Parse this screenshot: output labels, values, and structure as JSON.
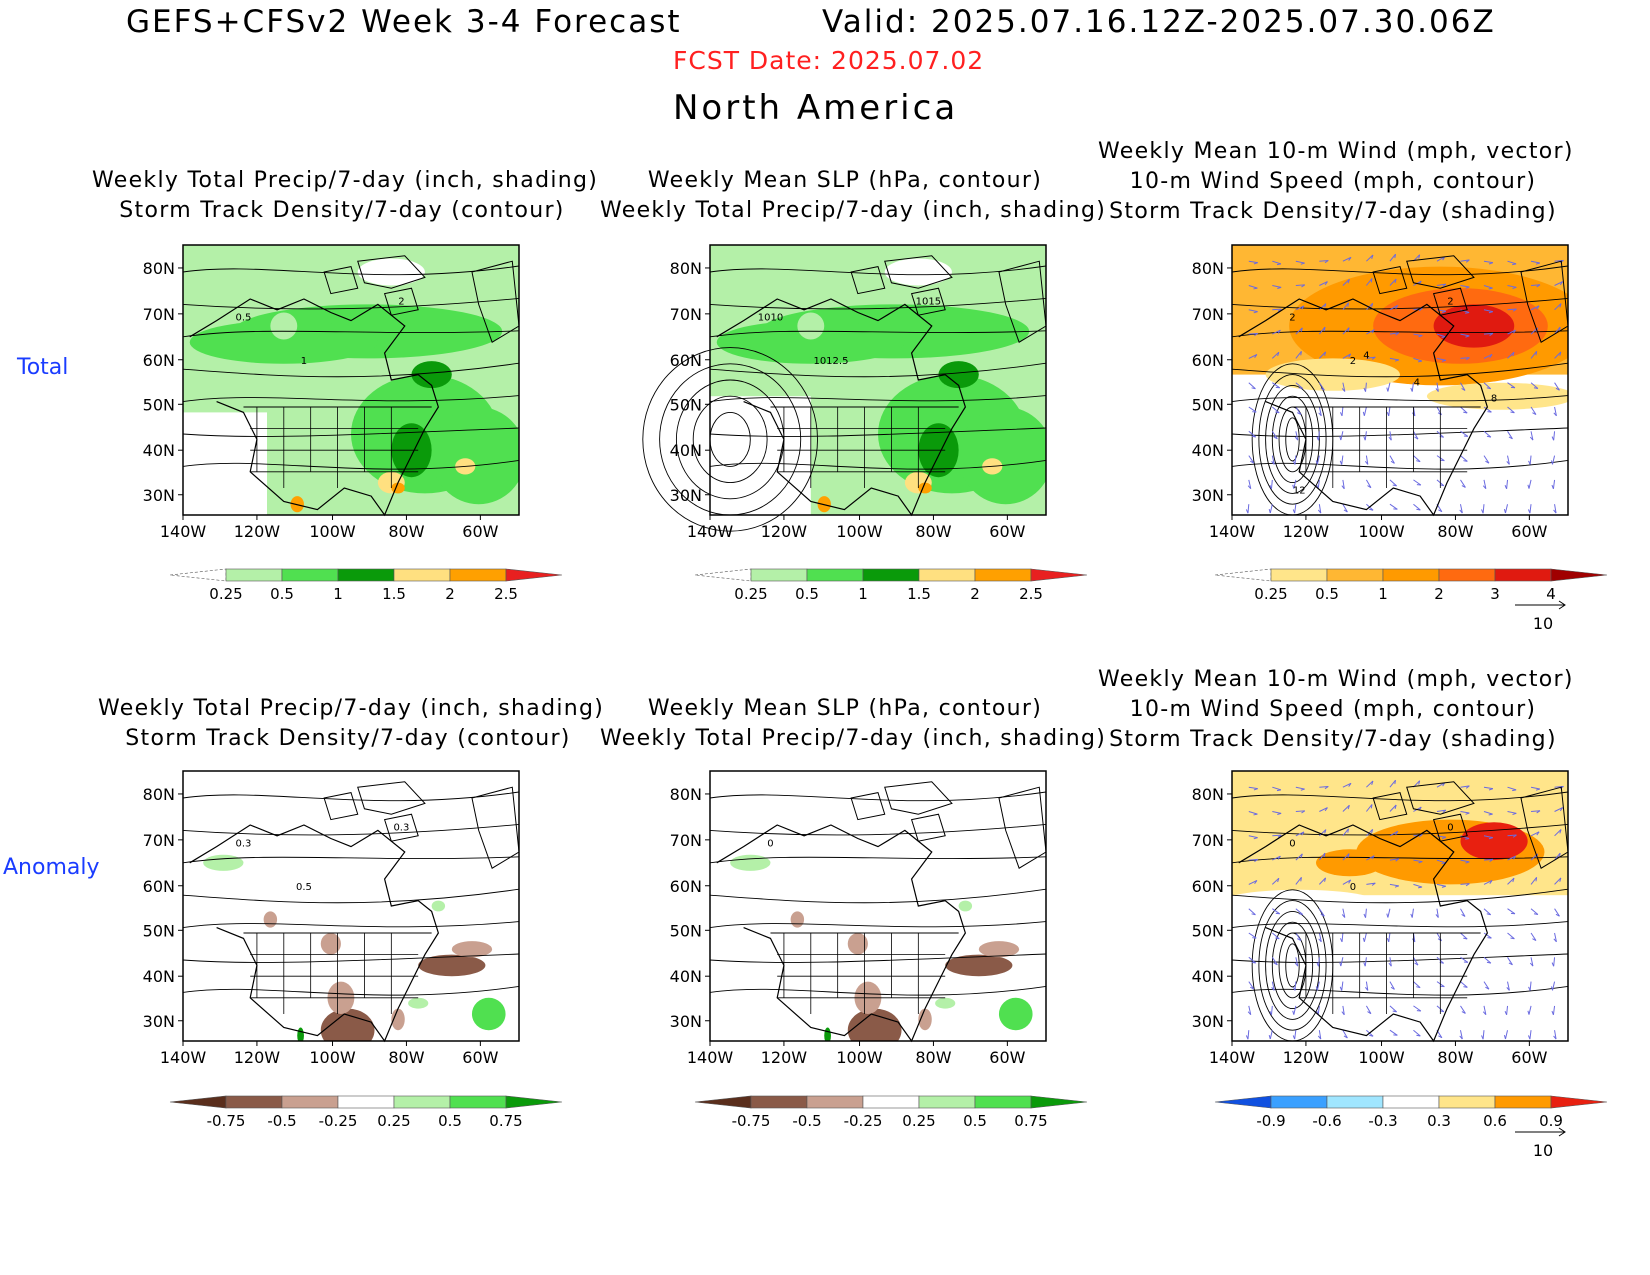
{
  "header": {
    "title": "GEFS+CFSv2 Week 3-4 Forecast",
    "valid": "Valid: 2025.07.16.12Z-2025.07.30.06Z",
    "fcst_date": "FCST Date: 2025.07.02",
    "region": "North America"
  },
  "rows": {
    "total": "Total",
    "anomaly": "Anomaly"
  },
  "panel_titles": {
    "precip_storm": [
      "Weekly Total Precip/7-day (inch, shading)",
      "Storm Track Density/7-day (contour)"
    ],
    "slp_precip": [
      "Weekly Mean SLP (hPa, contour)",
      "Weekly Total Precip/7-day (inch, shading)"
    ],
    "wind_storm": [
      "Weekly Mean 10-m Wind (mph, vector)",
      "10-m Wind Speed (mph, contour)",
      "Storm Track Density/7-day (shading)"
    ]
  },
  "axes": {
    "lat_labels": [
      "80N",
      "70N",
      "60N",
      "50N",
      "40N",
      "30N"
    ],
    "lon_labels": [
      "140W",
      "120W",
      "100W",
      "80W",
      "60W"
    ]
  },
  "colorbars": {
    "precip_total": [
      "0.25",
      "0.5",
      "1",
      "1.5",
      "2",
      "2.5"
    ],
    "storm_total": [
      "0.25",
      "0.5",
      "1",
      "2",
      "3",
      "4"
    ],
    "precip_anom": [
      "-0.75",
      "-0.5",
      "-0.25",
      "0.25",
      "0.5",
      "0.75"
    ],
    "storm_anom": [
      "-0.9",
      "-0.6",
      "-0.3",
      "0.3",
      "0.6",
      "0.9"
    ]
  },
  "colors": {
    "precip_total": [
      "#ffffff",
      "#b4f0a8",
      "#50e050",
      "#0a9a0a",
      "#ffe080",
      "#ffa000",
      "#e82020"
    ],
    "storm_total": [
      "#ffffff",
      "#ffe58a",
      "#ffb733",
      "#ff9a00",
      "#ff6a10",
      "#e01a10",
      "#a00000"
    ],
    "precip_anom": [
      "#5a2e1c",
      "#8a5a48",
      "#c9a090",
      "#ffffff",
      "#b4f0a8",
      "#50e050",
      "#0a9a0a"
    ],
    "storm_anom": [
      "#1050e0",
      "#3aa0ff",
      "#a0e6ff",
      "#ffffff",
      "#ffe58a",
      "#ff9a00",
      "#e82010"
    ]
  },
  "contour_labels": {
    "total_storm": [
      "0.5",
      "1",
      "2"
    ],
    "total_slp": [
      "1010",
      "1012.5",
      "1015"
    ],
    "total_wind": [
      "2",
      "2",
      "2",
      "4",
      "4",
      "8",
      "12"
    ],
    "anom_storm": [
      "0.3",
      "0.5",
      "0.3"
    ],
    "anom_slp": [
      "0"
    ],
    "anom_wind": [
      "0",
      "0",
      "0"
    ]
  },
  "vector_ref": "10"
}
